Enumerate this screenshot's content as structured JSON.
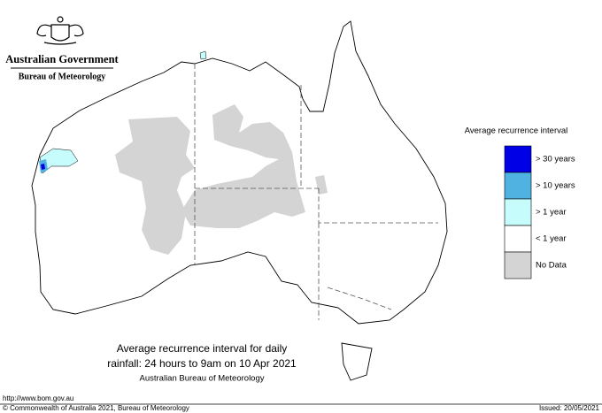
{
  "header": {
    "government": "Australian Government",
    "agency": "Bureau of Meteorology"
  },
  "legend": {
    "title": "Average recurrence interval",
    "items": [
      {
        "label": "> 30 years",
        "color": "#0000e6"
      },
      {
        "label": "> 10 years",
        "color": "#4fb2e0"
      },
      {
        "label": "> 1 year",
        "color": "#c6fcfc"
      },
      {
        "label": "< 1 year",
        "color": "#ffffff"
      },
      {
        "label": "No Data",
        "color": "#d4d4d4"
      }
    ]
  },
  "caption": {
    "lines": [
      "Average recurrence interval for daily",
      "rainfall: 24 hours to 9am on 10 Apr 2021"
    ],
    "source": "Australian Bureau of Meteorology"
  },
  "footer": {
    "url": "http://www.bom.gov.au",
    "copyright": "© Commonwealth of Australia 2021, Bureau of Meteorology",
    "issued": "Issued: 20/05/2021"
  }
}
